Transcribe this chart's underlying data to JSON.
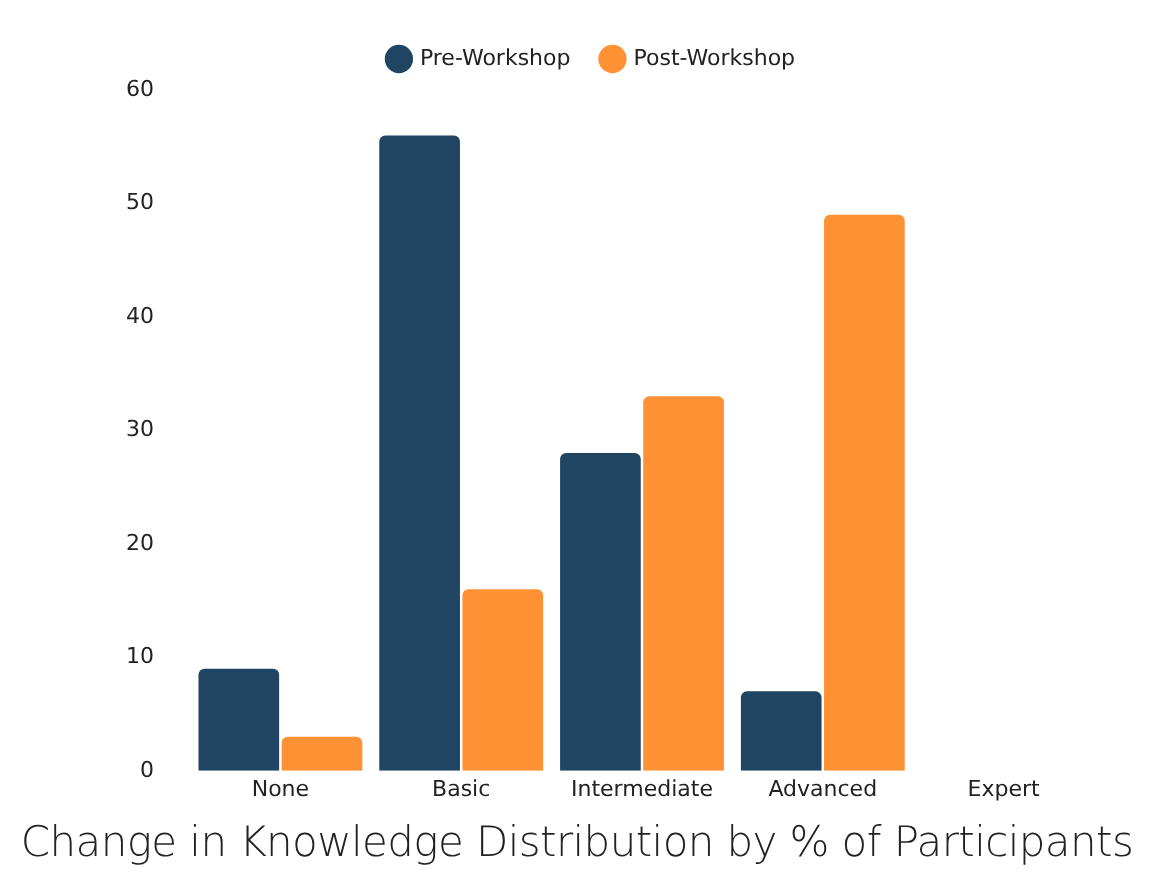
{
  "chart_data": {
    "type": "bar",
    "title": "Change in Knowledge Distribution by % of Participants",
    "categories": [
      "None",
      "Basic",
      "Intermediate",
      "Advanced",
      "Expert"
    ],
    "series": [
      {
        "name": "Pre-Workshop",
        "color": "#1f4563",
        "values": [
          9,
          56,
          28,
          7,
          0
        ]
      },
      {
        "name": "Post-Workshop",
        "color": "#fd9133",
        "values": [
          3,
          16,
          33,
          49,
          0
        ]
      }
    ],
    "ylim": [
      0,
      60
    ],
    "yticks": [
      0,
      10,
      20,
      30,
      40,
      50,
      60
    ],
    "grid": false,
    "legend": "top"
  }
}
